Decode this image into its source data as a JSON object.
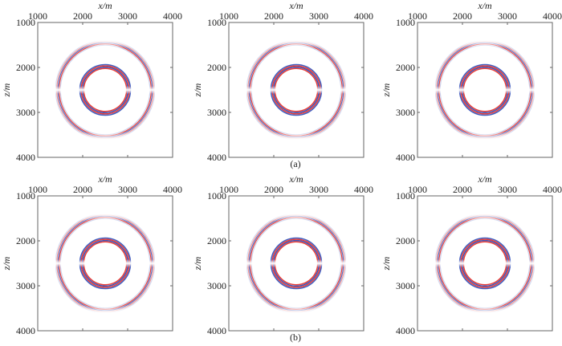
{
  "captions": {
    "a": "(a)",
    "b": "(b)"
  },
  "colors": {
    "positive": "#e8312a",
    "negative": "#2c4bb8",
    "axis": "#666666"
  },
  "chart_data": [
    {
      "type": "heatmap",
      "group": "a",
      "xlabel": "x/m",
      "ylabel": "z/m",
      "xlim": [
        1000,
        4000
      ],
      "ylim": [
        1000,
        4000
      ],
      "xticks": [
        1000,
        2000,
        3000,
        4000
      ],
      "yticks": [
        1000,
        2000,
        3000,
        4000
      ],
      "center": [
        2500,
        2500
      ],
      "ring_radii_m": [
        1050,
        520
      ],
      "colormap": "red-white-blue"
    },
    {
      "type": "heatmap",
      "group": "a",
      "xlabel": "x/m",
      "ylabel": "z/m",
      "xlim": [
        1000,
        4000
      ],
      "ylim": [
        1000,
        4000
      ],
      "xticks": [
        1000,
        2000,
        3000,
        4000
      ],
      "yticks": [
        1000,
        2000,
        3000,
        4000
      ],
      "center": [
        2500,
        2500
      ],
      "ring_radii_m": [
        1050,
        520
      ],
      "colormap": "red-white-blue"
    },
    {
      "type": "heatmap",
      "group": "a",
      "xlabel": "x/m",
      "ylabel": "z/m",
      "xlim": [
        1000,
        4000
      ],
      "ylim": [
        1000,
        4000
      ],
      "xticks": [
        1000,
        2000,
        3000,
        4000
      ],
      "yticks": [
        1000,
        2000,
        3000,
        4000
      ],
      "center": [
        2500,
        2500
      ],
      "ring_radii_m": [
        1050,
        520
      ],
      "colormap": "red-white-blue"
    },
    {
      "type": "heatmap",
      "group": "b",
      "xlabel": "x/m",
      "ylabel": "z/m",
      "xlim": [
        1000,
        4000
      ],
      "ylim": [
        1000,
        4000
      ],
      "xticks": [
        1000,
        2000,
        3000,
        4000
      ],
      "yticks": [
        1000,
        2000,
        3000,
        4000
      ],
      "center": [
        2500,
        2500
      ],
      "ring_radii_m": [
        1050,
        520
      ],
      "colormap": "red-white-blue"
    },
    {
      "type": "heatmap",
      "group": "b",
      "xlabel": "x/m",
      "ylabel": "z/m",
      "xlim": [
        1000,
        4000
      ],
      "ylim": [
        1000,
        4000
      ],
      "xticks": [
        1000,
        2000,
        3000,
        4000
      ],
      "yticks": [
        1000,
        2000,
        3000,
        4000
      ],
      "center": [
        2500,
        2500
      ],
      "ring_radii_m": [
        1050,
        520
      ],
      "colormap": "red-white-blue"
    },
    {
      "type": "heatmap",
      "group": "b",
      "xlabel": "x/m",
      "ylabel": "z/m",
      "xlim": [
        1000,
        4000
      ],
      "ylim": [
        1000,
        4000
      ],
      "xticks": [
        1000,
        2000,
        3000,
        4000
      ],
      "yticks": [
        1000,
        2000,
        3000,
        4000
      ],
      "center": [
        2500,
        2500
      ],
      "ring_radii_m": [
        1050,
        520
      ],
      "colormap": "red-white-blue"
    }
  ]
}
